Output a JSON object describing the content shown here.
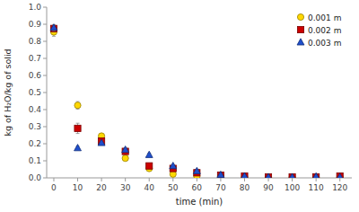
{
  "chart_data": {
    "type": "scatter",
    "xlabel": "time (min)",
    "ylabel": "kg of H₂O/kg of solid",
    "x": [
      0,
      10,
      20,
      30,
      40,
      50,
      60,
      70,
      80,
      90,
      100,
      110,
      120
    ],
    "xlim": [
      -3,
      125
    ],
    "xticks": [
      0,
      10,
      20,
      30,
      40,
      50,
      60,
      70,
      80,
      90,
      100,
      110,
      120
    ],
    "ylim": [
      0,
      1.0
    ],
    "yticks": [
      {
        "value": 0.0,
        "label": "0.0"
      },
      0.1,
      0.2,
      0.3,
      0.4,
      0.5,
      0.6,
      0.7,
      0.8,
      0.9,
      {
        "value": 1.0,
        "label": "1.0"
      }
    ],
    "grid": false,
    "legend": "upper right",
    "series": [
      {
        "name": "0.001 m",
        "color": "#FFD700",
        "marker": "circle",
        "values": [
          0.855,
          0.425,
          0.245,
          0.115,
          0.055,
          0.022,
          0.01,
          0.008,
          0.005,
          0.003,
          0.003,
          0.003,
          0.003
        ],
        "errors": [
          0.025,
          0.022,
          0.012,
          0.01,
          0.008,
          0.007,
          0.004,
          0.003,
          0.003,
          0.002,
          0.002,
          0.002,
          0.002
        ]
      },
      {
        "name": "0.002 m",
        "color": "#CC0000",
        "marker": "square",
        "values": [
          0.875,
          0.29,
          0.215,
          0.155,
          0.07,
          0.055,
          0.03,
          0.015,
          0.01,
          0.005,
          0.005,
          0.005,
          0.01
        ],
        "errors": [
          0.02,
          0.03,
          0.01,
          0.012,
          0.008,
          0.007,
          0.004,
          0.004,
          0.003,
          0.002,
          0.002,
          0.002,
          0.003
        ]
      },
      {
        "name": "0.003 m",
        "color": "#1F4FCC",
        "marker": "triangle",
        "values": [
          0.88,
          0.175,
          0.205,
          0.165,
          0.135,
          0.07,
          0.04,
          0.018,
          0.01,
          0.005,
          0.005,
          0.008,
          0.005
        ],
        "errors": [
          0.018,
          0.01,
          0.01,
          0.01,
          0.01,
          0.007,
          0.005,
          0.004,
          0.003,
          0.002,
          0.002,
          0.003,
          0.002
        ]
      }
    ]
  }
}
